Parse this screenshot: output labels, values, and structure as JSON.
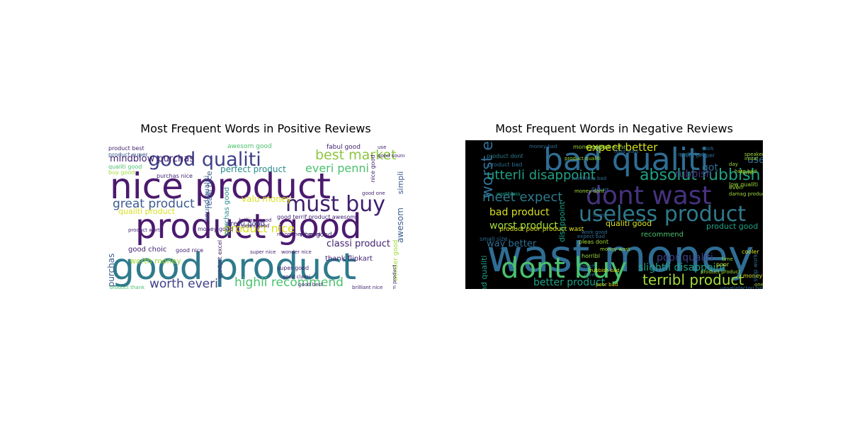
{
  "chart_data": [
    {
      "type": "wordcloud",
      "title": "Most Frequent Words in Positive Reviews",
      "background": "#ffffff",
      "palette": [
        "#440154",
        "#46327e",
        "#365c8d",
        "#277f8e",
        "#1fa187",
        "#4ac16d",
        "#a0da39",
        "#fde725"
      ],
      "words": [
        {
          "text": "good product",
          "weight": 100,
          "color": "#2f7a8c",
          "orientation": "horizontal"
        },
        {
          "text": "nice product",
          "weight": 95,
          "color": "#4b1a6e",
          "orientation": "horizontal"
        },
        {
          "text": "product good",
          "weight": 90,
          "color": "#4b1a6e",
          "orientation": "horizontal"
        },
        {
          "text": "must buy",
          "weight": 55,
          "color": "#3e1f6e",
          "orientation": "horizontal"
        },
        {
          "text": "good qualiti",
          "weight": 52,
          "color": "#3e3f88",
          "orientation": "horizontal"
        },
        {
          "text": "best market",
          "weight": 38,
          "color": "#8dc63f",
          "orientation": "horizontal"
        },
        {
          "text": "great product",
          "weight": 36,
          "color": "#3b5b8f",
          "orientation": "horizontal"
        },
        {
          "text": "highli recommend",
          "weight": 33,
          "color": "#4ac16d",
          "orientation": "horizontal"
        },
        {
          "text": "worth everi",
          "weight": 32,
          "color": "#3e3f88",
          "orientation": "horizontal"
        },
        {
          "text": "everi penni",
          "weight": 30,
          "color": "#4ac16d",
          "orientation": "horizontal"
        },
        {
          "text": "product nice",
          "weight": 28,
          "color": "#d8e020",
          "orientation": "horizontal"
        },
        {
          "text": "mindblow purchas",
          "weight": 24,
          "color": "#3e1f6e",
          "orientation": "horizontal"
        },
        {
          "text": "classi product",
          "weight": 24,
          "color": "#3e1f6e",
          "orientation": "horizontal"
        },
        {
          "text": "perfect product",
          "weight": 22,
          "color": "#2a8c8c",
          "orientation": "horizontal"
        },
        {
          "text": "valu money",
          "weight": 20,
          "color": "#d8e020",
          "orientation": "horizontal"
        },
        {
          "text": "worth money",
          "weight": 20,
          "color": "#a0da39",
          "orientation": "horizontal"
        },
        {
          "text": "terrif purchas",
          "weight": 20,
          "color": "#3b5b8f",
          "orientation": "vertical"
        },
        {
          "text": "awesom",
          "weight": 18,
          "color": "#3b5b8f",
          "orientation": "vertical"
        },
        {
          "text": "simpli",
          "weight": 18,
          "color": "#3b5b8f",
          "orientation": "vertical"
        },
        {
          "text": "realli nice",
          "weight": 16,
          "color": "#3b5b8f",
          "orientation": "vertical"
        },
        {
          "text": "good choic",
          "weight": 16,
          "color": "#3e1f6e",
          "orientation": "horizontal"
        },
        {
          "text": "pretti good",
          "weight": 16,
          "color": "#3e3f88",
          "orientation": "horizontal"
        },
        {
          "text": "qualiti product",
          "weight": 16,
          "color": "#d8e020",
          "orientation": "horizontal"
        },
        {
          "text": "purchas good",
          "weight": 14,
          "color": "#2a8c8c",
          "orientation": "vertical"
        },
        {
          "text": "sound qualiti",
          "weight": 13,
          "color": "#3b5b8f",
          "orientation": "vertical"
        },
        {
          "text": "awesom good",
          "weight": 13,
          "color": "#4ac16d",
          "orientation": "horizontal"
        },
        {
          "text": "thank flipkart",
          "weight": 12,
          "color": "#3e1f6e",
          "orientation": "horizontal"
        },
        {
          "text": "good terrif product awesom",
          "weight": 11,
          "color": "#3e1f6e",
          "orientation": "horizontal"
        },
        {
          "text": "wonder good",
          "weight": 11,
          "color": "#a0da39",
          "orientation": "vertical"
        },
        {
          "text": "fabul good",
          "weight": 10,
          "color": "#3e1f6e",
          "orientation": "horizontal"
        },
        {
          "text": "brilliant good",
          "weight": 9,
          "color": "#3e1f6e",
          "orientation": "horizontal"
        },
        {
          "text": "product best",
          "weight": 9,
          "color": "#3e1f6e",
          "orientation": "horizontal"
        },
        {
          "text": "product super",
          "weight": 9,
          "color": "#3b5b8f",
          "orientation": "horizontal"
        },
        {
          "text": "qualiti good",
          "weight": 9,
          "color": "#4ac16d",
          "orientation": "horizontal"
        },
        {
          "text": "buy good",
          "weight": 8,
          "color": "#a0da39",
          "orientation": "horizontal"
        },
        {
          "text": "purchas nice",
          "weight": 8,
          "color": "#3e1f6e",
          "orientation": "horizontal"
        },
        {
          "text": "product excel",
          "weight": 8,
          "color": "#3e1f6e",
          "orientation": "vertical"
        },
        {
          "text": "super good",
          "weight": 8,
          "color": "#3e1f6e",
          "orientation": "horizontal"
        },
        {
          "text": "super nice",
          "weight": 8,
          "color": "#3e1f6e",
          "orientation": "horizontal"
        },
        {
          "text": "wonder nice",
          "weight": 8,
          "color": "#3e1f6e",
          "orientation": "horizontal"
        },
        {
          "text": "recommend good",
          "weight": 8,
          "color": "#3e1f6e",
          "orientation": "horizontal"
        },
        {
          "text": "money good",
          "weight": 8,
          "color": "#3e1f6e",
          "orientation": "horizontal"
        },
        {
          "text": "penni good",
          "weight": 8,
          "color": "#3e1f6e",
          "orientation": "horizontal"
        },
        {
          "text": "good nice",
          "weight": 8,
          "color": "#3e1f6e",
          "orientation": "horizontal"
        },
        {
          "text": "product worth",
          "weight": 8,
          "color": "#3e1f6e",
          "orientation": "horizontal"
        },
        {
          "text": "nice good",
          "weight": 8,
          "color": "#3e1f6e",
          "orientation": "vertical"
        },
        {
          "text": "wow good",
          "weight": 7,
          "color": "#3e1f6e",
          "orientation": "horizontal"
        },
        {
          "text": "use",
          "weight": 8,
          "color": "#3e1f6e",
          "orientation": "horizontal"
        },
        {
          "text": "good sound",
          "weight": 7,
          "color": "#3e1f6e",
          "orientation": "horizontal"
        },
        {
          "text": "good one",
          "weight": 7,
          "color": "#3e1f6e",
          "orientation": "horizontal"
        },
        {
          "text": "good best",
          "weight": 7,
          "color": "#3e1f6e",
          "orientation": "horizontal"
        },
        {
          "text": "brilliant nice",
          "weight": 7,
          "color": "#3e1f6e",
          "orientation": "horizontal"
        },
        {
          "text": "product thank",
          "weight": 7,
          "color": "#4ac16d",
          "orientation": "horizontal"
        },
        {
          "text": "good classi",
          "weight": 7,
          "color": "#3e1f6e",
          "orientation": "horizontal"
        },
        {
          "text": "awesom product",
          "weight": 7,
          "color": "#3e1f6e",
          "orientation": "vertical"
        }
      ]
    },
    {
      "type": "wordcloud",
      "title": "Most Frequent Words in Negative Reviews",
      "background": "#000000",
      "palette": [
        "#440154",
        "#46327e",
        "#365c8d",
        "#277f8e",
        "#1fa187",
        "#4ac16d",
        "#a0da39",
        "#fde725"
      ],
      "words": [
        {
          "text": "wast money",
          "weight": 100,
          "color": "#2f6d94",
          "orientation": "horizontal"
        },
        {
          "text": "bad qualiti",
          "weight": 80,
          "color": "#2f6d94",
          "orientation": "horizontal"
        },
        {
          "text": "dont buy",
          "weight": 70,
          "color": "#4ac16d",
          "orientation": "horizontal"
        },
        {
          "text": "dont wast",
          "weight": 58,
          "color": "#46327e",
          "orientation": "horizontal"
        },
        {
          "text": "useless product",
          "weight": 50,
          "color": "#2f7a8c",
          "orientation": "horizontal"
        },
        {
          "text": "worst experi",
          "weight": 38,
          "color": "#2f6d94",
          "orientation": "vertical"
        },
        {
          "text": "absolut rubbish",
          "weight": 36,
          "color": "#1fa187",
          "orientation": "horizontal"
        },
        {
          "text": "terribl product",
          "weight": 32,
          "color": "#a0da39",
          "orientation": "horizontal"
        },
        {
          "text": "meet expect",
          "weight": 30,
          "color": "#2f7a8c",
          "orientation": "horizontal"
        },
        {
          "text": "utterli disappoint",
          "weight": 30,
          "color": "#1fa187",
          "orientation": "horizontal"
        },
        {
          "text": "expect better",
          "weight": 26,
          "color": "#d8e020",
          "orientation": "horizontal"
        },
        {
          "text": "bad product",
          "weight": 24,
          "color": "#d8e020",
          "orientation": "horizontal"
        },
        {
          "text": "slightli disappoint",
          "weight": 22,
          "color": "#1fa187",
          "orientation": "horizontal"
        },
        {
          "text": "better product",
          "weight": 22,
          "color": "#1fa187",
          "orientation": "horizontal"
        },
        {
          "text": "worst product",
          "weight": 22,
          "color": "#a0da39",
          "orientation": "horizontal"
        },
        {
          "text": "poor qualiti",
          "weight": 22,
          "color": "#3e3f88",
          "orientation": "horizontal"
        },
        {
          "text": "way better",
          "weight": 18,
          "color": "#2f6d94",
          "orientation": "horizontal"
        },
        {
          "text": "qualiti good",
          "weight": 16,
          "color": "#d8e020",
          "orientation": "horizontal"
        },
        {
          "text": "product good",
          "weight": 14,
          "color": "#1fa187",
          "orientation": "horizontal"
        },
        {
          "text": "sound qualiti",
          "weight": 14,
          "color": "#1fa187",
          "orientation": "vertical"
        },
        {
          "text": "disappoint",
          "weight": 14,
          "color": "#1fa187",
          "orientation": "vertical"
        },
        {
          "text": "use",
          "weight": 14,
          "color": "#2f6d94",
          "orientation": "horizontal"
        },
        {
          "text": "got",
          "weight": 14,
          "color": "#2f6d94",
          "orientation": "horizontal"
        },
        {
          "text": "rubbish",
          "weight": 14,
          "color": "#46327e",
          "orientation": "horizontal"
        },
        {
          "text": "recommend",
          "weight": 11,
          "color": "#4ac16d",
          "orientation": "horizontal"
        },
        {
          "text": "product poor product wast",
          "weight": 10,
          "color": "#d8e020",
          "orientation": "horizontal"
        },
        {
          "text": "product bad",
          "weight": 10,
          "color": "#2f6d94",
          "orientation": "horizontal"
        },
        {
          "text": "product dont",
          "weight": 10,
          "color": "#2f7a8c",
          "orientation": "horizontal"
        },
        {
          "text": "money worst",
          "weight": 9,
          "color": "#a0da39",
          "orientation": "horizontal"
        },
        {
          "text": "work proper",
          "weight": 9,
          "color": "#2f6d94",
          "orientation": "horizontal"
        },
        {
          "text": "low qualiti",
          "weight": 9,
          "color": "#a0da39",
          "orientation": "horizontal"
        },
        {
          "text": "hate",
          "weight": 9,
          "color": "#a0da39",
          "orientation": "horizontal"
        },
        {
          "text": "cooler",
          "weight": 9,
          "color": "#d8e020",
          "orientation": "horizontal"
        },
        {
          "text": "small size",
          "weight": 9,
          "color": "#2f6d94",
          "orientation": "horizontal"
        },
        {
          "text": "pleas dont",
          "weight": 9,
          "color": "#a0da39",
          "orientation": "horizontal"
        },
        {
          "text": "horribl",
          "weight": 9,
          "color": "#a0da39",
          "orientation": "horizontal"
        },
        {
          "text": "qualiti bad",
          "weight": 9,
          "color": "#2f6d94",
          "orientation": "horizontal"
        },
        {
          "text": "money good",
          "weight": 8,
          "color": "#d8e020",
          "orientation": "horizontal"
        },
        {
          "text": "poor bad",
          "weight": 8,
          "color": "#d8e020",
          "orientation": "horizontal"
        },
        {
          "text": "stop work",
          "weight": 8,
          "color": "#2f6d94",
          "orientation": "vertical"
        },
        {
          "text": "worthless",
          "weight": 8,
          "color": "#1fa187",
          "orientation": "horizontal"
        },
        {
          "text": "flipkart",
          "weight": 8,
          "color": "#2f6d94",
          "orientation": "horizontal"
        },
        {
          "text": "item",
          "weight": 8,
          "color": "#2f6d94",
          "orientation": "horizontal"
        },
        {
          "text": "damag product",
          "weight": 7,
          "color": "#a0da39",
          "orientation": "horizontal"
        },
        {
          "text": "work good",
          "weight": 7,
          "color": "#2f6d94",
          "orientation": "horizontal"
        },
        {
          "text": "poor",
          "weight": 7,
          "color": "#d8e020",
          "orientation": "horizontal"
        },
        {
          "text": "time",
          "weight": 7,
          "color": "#a0da39",
          "orientation": "horizontal"
        },
        {
          "text": "even",
          "weight": 7,
          "color": "#a0da39",
          "orientation": "horizontal"
        },
        {
          "text": "much",
          "weight": 7,
          "color": "#2f6d94",
          "orientation": "horizontal"
        },
        {
          "text": "give",
          "weight": 7,
          "color": "#2f6d94",
          "orientation": "horizontal"
        },
        {
          "text": "one",
          "weight": 7,
          "color": "#a0da39",
          "orientation": "horizontal"
        },
        {
          "text": "day",
          "weight": 7,
          "color": "#a0da39",
          "orientation": "horizontal"
        },
        {
          "text": "money wast",
          "weight": 7,
          "color": "#a0da39",
          "orientation": "horizontal"
        },
        {
          "text": "rubbish bad",
          "weight": 7,
          "color": "#d8e020",
          "orientation": "horizontal"
        },
        {
          "text": "money dont",
          "weight": 7,
          "color": "#a0da39",
          "orientation": "horizontal"
        },
        {
          "text": "product worst",
          "weight": 7,
          "color": "#a0da39",
          "orientation": "horizontal"
        },
        {
          "text": "worthless bad",
          "weight": 7,
          "color": "#2f6d94",
          "orientation": "horizontal"
        },
        {
          "text": "expect bad",
          "weight": 7,
          "color": "#2f6d94",
          "orientation": "horizontal"
        },
        {
          "text": "hate bad",
          "weight": 6,
          "color": "#a0da39",
          "orientation": "horizontal"
        },
        {
          "text": "speaker",
          "weight": 6,
          "color": "#a0da39",
          "orientation": "horizontal"
        },
        {
          "text": "instal",
          "weight": 6,
          "color": "#a0da39",
          "orientation": "horizontal"
        },
        {
          "text": "unsatisfactori bad",
          "weight": 6,
          "color": "#2f6d94",
          "orientation": "horizontal"
        },
        {
          "text": "product qualiti",
          "weight": 6,
          "color": "#a0da39",
          "orientation": "horizontal"
        },
        {
          "text": "money bad",
          "weight": 6,
          "color": "#2f6d94",
          "orientation": "horizontal"
        },
        {
          "text": "tend wast",
          "weight": 6,
          "color": "#2f6d94",
          "orientation": "horizontal"
        },
        {
          "text": "product product",
          "weight": 6,
          "color": "#a0da39",
          "orientation": "horizontal"
        },
        {
          "text": "work",
          "weight": 6,
          "color": "#2f6d94",
          "orientation": "horizontal"
        }
      ]
    }
  ]
}
